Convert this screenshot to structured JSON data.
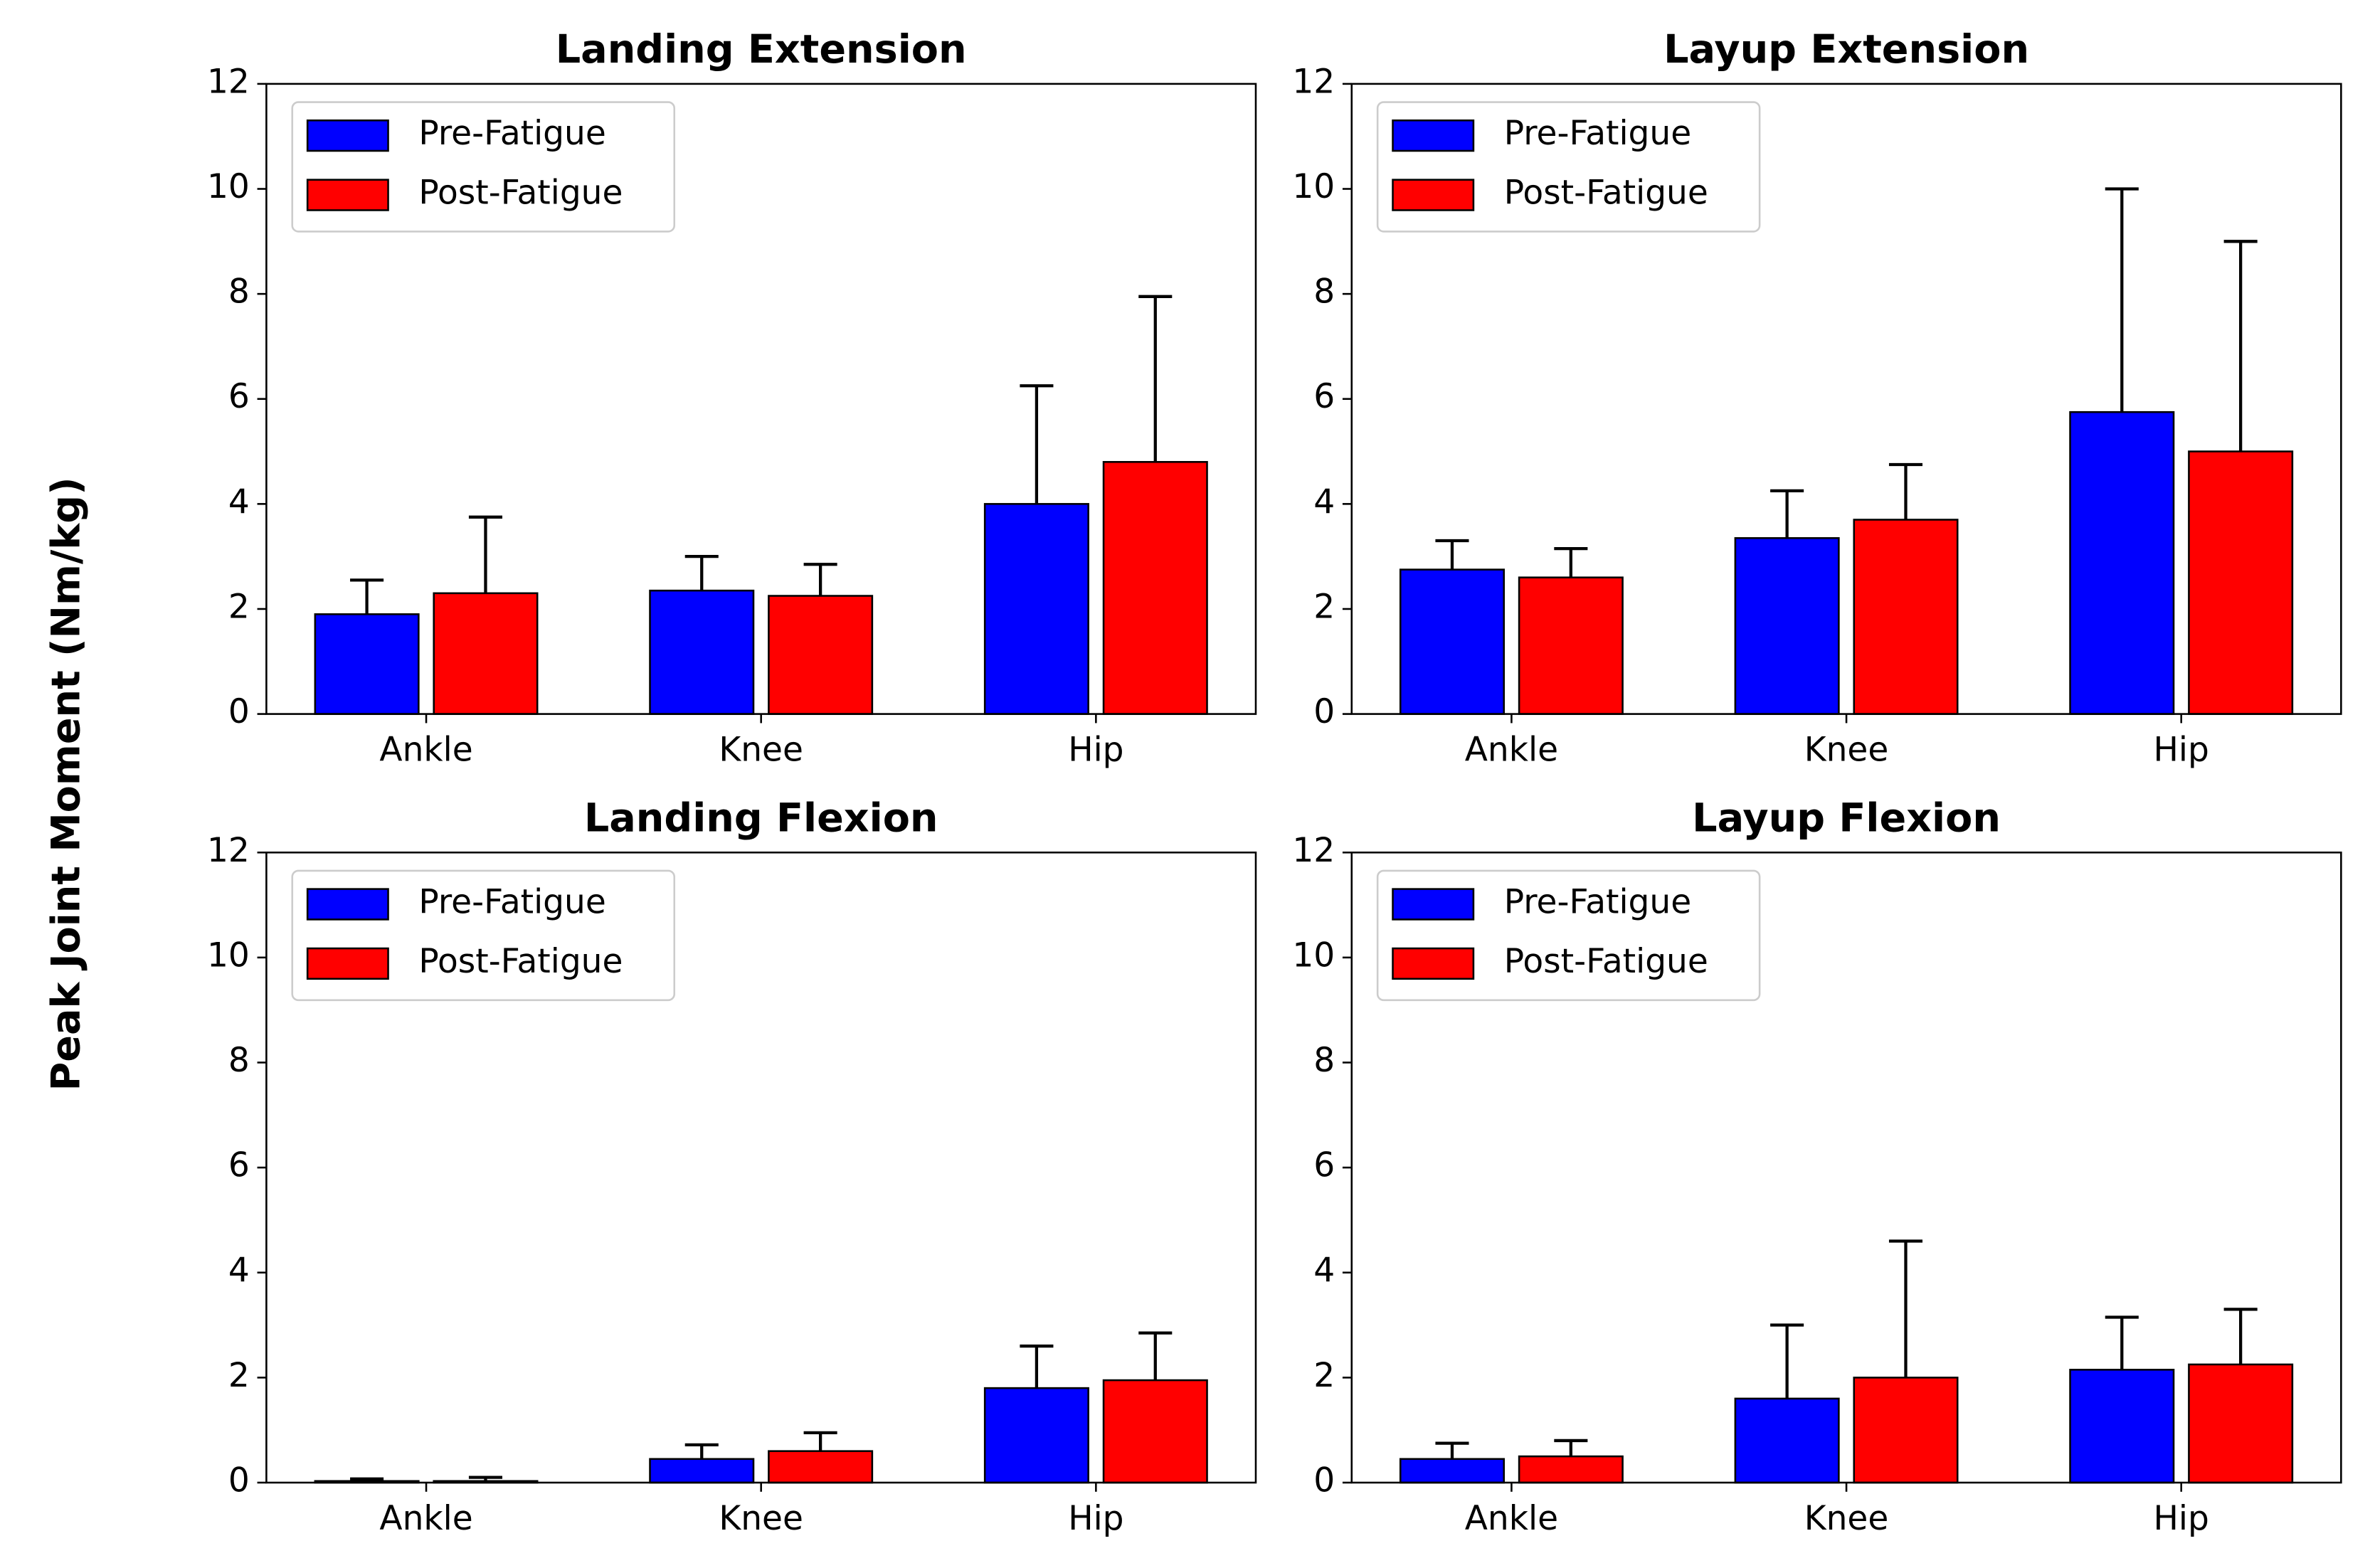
{
  "ylabel": "Peak Joint Moment (Nm/kg)",
  "chart_data": [
    {
      "type": "bar",
      "title": "Landing Extension",
      "categories": [
        "Ankle",
        "Knee",
        "Hip"
      ],
      "series": [
        {
          "name": "Pre-Fatigue",
          "color": "#0000ff",
          "values": [
            1.9,
            2.35,
            4.0
          ],
          "errors": [
            0.65,
            0.65,
            2.25
          ]
        },
        {
          "name": "Post-Fatigue",
          "color": "#ff0000",
          "values": [
            2.3,
            2.25,
            4.8
          ],
          "errors": [
            1.45,
            0.6,
            3.15
          ]
        }
      ],
      "ylim": [
        0,
        12
      ],
      "yticks": [
        0,
        2,
        4,
        6,
        8,
        10,
        12
      ],
      "legend": "upper left"
    },
    {
      "type": "bar",
      "title": "Layup Extension",
      "categories": [
        "Ankle",
        "Knee",
        "Hip"
      ],
      "series": [
        {
          "name": "Pre-Fatigue",
          "color": "#0000ff",
          "values": [
            2.75,
            3.35,
            5.75
          ],
          "errors": [
            0.55,
            0.9,
            4.25
          ]
        },
        {
          "name": "Post-Fatigue",
          "color": "#ff0000",
          "values": [
            2.6,
            3.7,
            5.0
          ],
          "errors": [
            0.55,
            1.05,
            4.0
          ]
        }
      ],
      "ylim": [
        0,
        12
      ],
      "yticks": [
        0,
        2,
        4,
        6,
        8,
        10,
        12
      ],
      "legend": "upper left"
    },
    {
      "type": "bar",
      "title": "Landing Flexion",
      "categories": [
        "Ankle",
        "Knee",
        "Hip"
      ],
      "series": [
        {
          "name": "Pre-Fatigue",
          "color": "#0000ff",
          "values": [
            0.03,
            0.45,
            1.8
          ],
          "errors": [
            0.04,
            0.27,
            0.8
          ]
        },
        {
          "name": "Post-Fatigue",
          "color": "#ff0000",
          "values": [
            0.03,
            0.6,
            1.95
          ],
          "errors": [
            0.07,
            0.35,
            0.9
          ]
        }
      ],
      "ylim": [
        0,
        12
      ],
      "yticks": [
        0,
        2,
        4,
        6,
        8,
        10,
        12
      ],
      "legend": "upper left"
    },
    {
      "type": "bar",
      "title": "Layup Flexion",
      "categories": [
        "Ankle",
        "Knee",
        "Hip"
      ],
      "series": [
        {
          "name": "Pre-Fatigue",
          "color": "#0000ff",
          "values": [
            0.45,
            1.6,
            2.15
          ],
          "errors": [
            0.3,
            1.4,
            1.0
          ]
        },
        {
          "name": "Post-Fatigue",
          "color": "#ff0000",
          "values": [
            0.5,
            2.0,
            2.25
          ],
          "errors": [
            0.3,
            2.6,
            1.05
          ]
        }
      ],
      "ylim": [
        0,
        12
      ],
      "yticks": [
        0,
        2,
        4,
        6,
        8,
        10,
        12
      ],
      "legend": "upper left"
    }
  ]
}
